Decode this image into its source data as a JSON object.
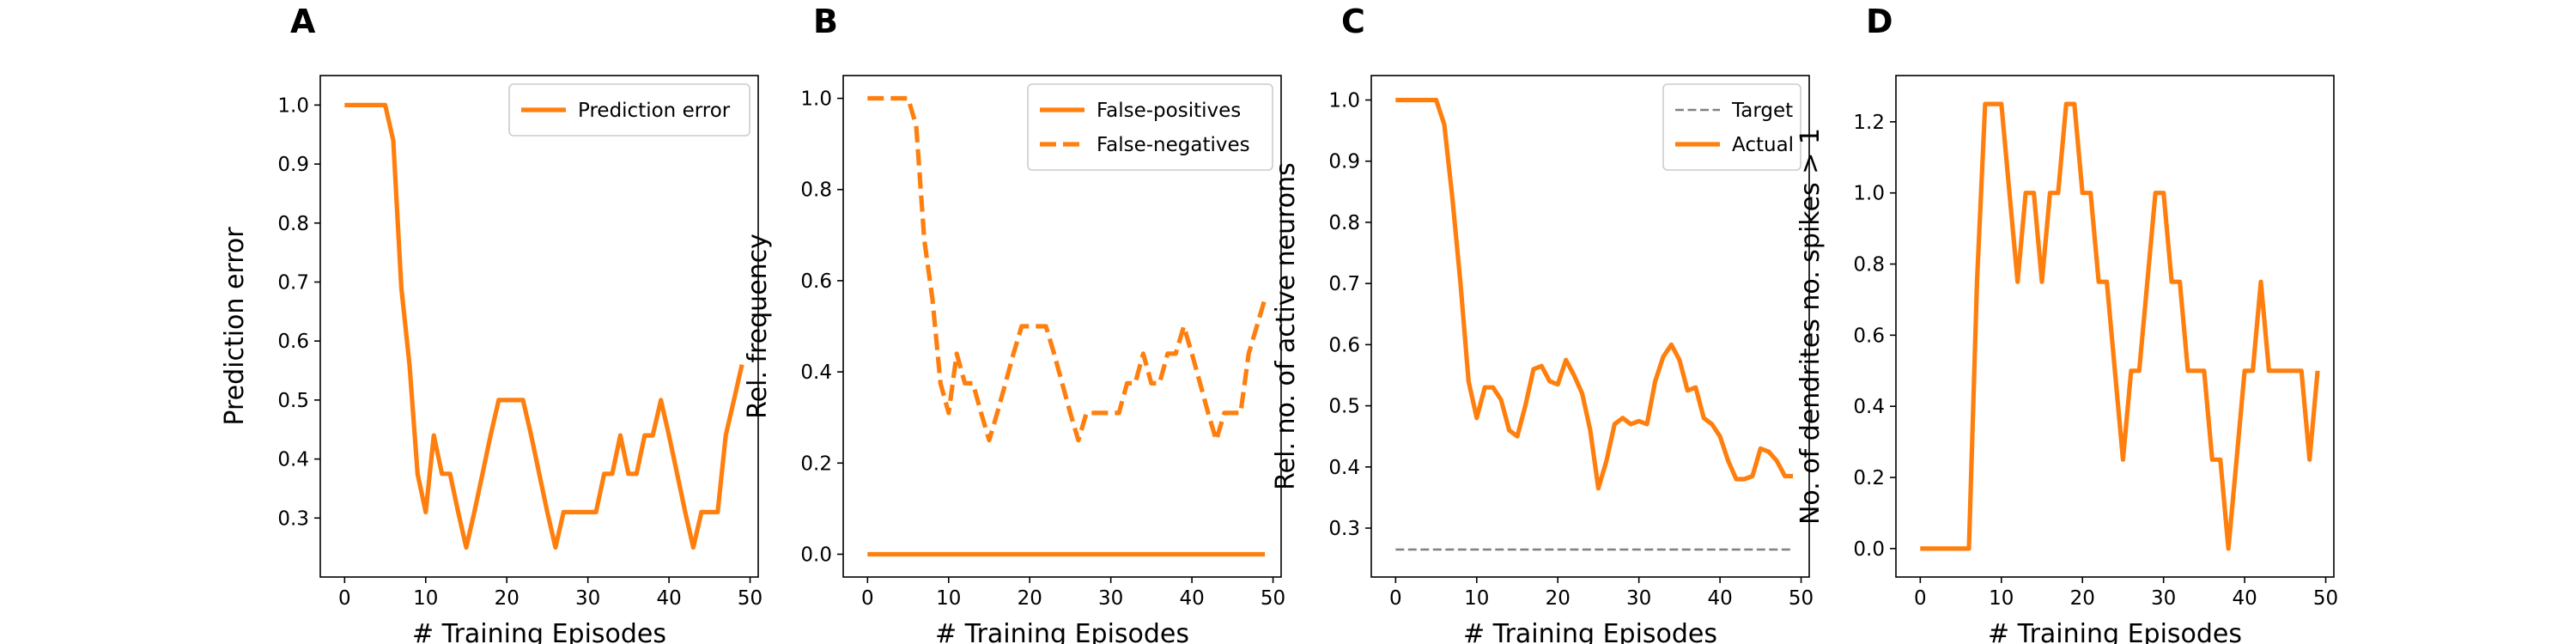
{
  "colors": {
    "orange": "#ff7f0e",
    "target": "#808080"
  },
  "chart_data": [
    {
      "letter": "A",
      "type": "line",
      "xlabel": "# Training Episodes",
      "ylabel": "Prediction error",
      "xlim": [
        -3,
        51
      ],
      "ylim": [
        0.2,
        1.05
      ],
      "xticks": [
        0,
        10,
        20,
        30,
        40,
        50
      ],
      "yticks": [
        0.3,
        0.4,
        0.5,
        0.6,
        0.7,
        0.8,
        0.9,
        1.0
      ],
      "yformat": 1,
      "legend_position": "top-right",
      "series": [
        {
          "name": "Prediction error",
          "style": "solid",
          "color": "#ff7f0e",
          "x": [
            0,
            1,
            2,
            3,
            4,
            5,
            6,
            7,
            8,
            9,
            10,
            11,
            12,
            13,
            14,
            15,
            16,
            17,
            18,
            19,
            20,
            21,
            22,
            23,
            24,
            25,
            26,
            27,
            28,
            29,
            30,
            31,
            32,
            33,
            34,
            35,
            36,
            37,
            38,
            39,
            40,
            41,
            42,
            43,
            44,
            45,
            46,
            47,
            48,
            49
          ],
          "y": [
            1.0,
            1.0,
            1.0,
            1.0,
            1.0,
            1.0,
            0.94,
            0.69,
            0.56,
            0.375,
            0.31,
            0.44,
            0.375,
            0.375,
            0.31,
            0.25,
            0.31,
            0.375,
            0.44,
            0.5,
            0.5,
            0.5,
            0.5,
            0.44,
            0.375,
            0.31,
            0.25,
            0.31,
            0.31,
            0.31,
            0.31,
            0.31,
            0.375,
            0.375,
            0.44,
            0.375,
            0.375,
            0.44,
            0.44,
            0.5,
            0.44,
            0.375,
            0.31,
            0.25,
            0.31,
            0.31,
            0.31,
            0.44,
            0.5,
            0.56
          ]
        }
      ]
    },
    {
      "letter": "B",
      "type": "line",
      "xlabel": "# Training Episodes",
      "ylabel": "Rel. frequency",
      "xlim": [
        -3,
        51
      ],
      "ylim": [
        -0.05,
        1.05
      ],
      "xticks": [
        0,
        10,
        20,
        30,
        40,
        50
      ],
      "yticks": [
        0.0,
        0.2,
        0.4,
        0.6,
        0.8,
        1.0
      ],
      "yformat": 1,
      "legend_position": "top-right",
      "series": [
        {
          "name": "False-positives",
          "style": "solid",
          "color": "#ff7f0e",
          "x": [
            0,
            49
          ],
          "y": [
            0.0,
            0.0
          ]
        },
        {
          "name": "False-negatives",
          "style": "dashed",
          "color": "#ff7f0e",
          "x": [
            0,
            1,
            2,
            3,
            4,
            5,
            6,
            7,
            8,
            9,
            10,
            11,
            12,
            13,
            14,
            15,
            16,
            17,
            18,
            19,
            20,
            21,
            22,
            23,
            24,
            25,
            26,
            27,
            28,
            29,
            30,
            31,
            32,
            33,
            34,
            35,
            36,
            37,
            38,
            39,
            40,
            41,
            42,
            43,
            44,
            45,
            46,
            47,
            48,
            49
          ],
          "y": [
            1.0,
            1.0,
            1.0,
            1.0,
            1.0,
            1.0,
            0.94,
            0.69,
            0.56,
            0.375,
            0.31,
            0.44,
            0.375,
            0.375,
            0.31,
            0.25,
            0.31,
            0.375,
            0.44,
            0.5,
            0.5,
            0.5,
            0.5,
            0.44,
            0.375,
            0.31,
            0.25,
            0.31,
            0.31,
            0.31,
            0.31,
            0.31,
            0.375,
            0.375,
            0.44,
            0.375,
            0.375,
            0.44,
            0.44,
            0.5,
            0.44,
            0.375,
            0.31,
            0.25,
            0.31,
            0.31,
            0.31,
            0.44,
            0.5,
            0.56
          ]
        }
      ]
    },
    {
      "letter": "C",
      "type": "line",
      "xlabel": "# Training Episodes",
      "ylabel": "Rel. no. of active neurons",
      "xlim": [
        -3,
        51
      ],
      "ylim": [
        0.22,
        1.04
      ],
      "xticks": [
        0,
        10,
        20,
        30,
        40,
        50
      ],
      "yticks": [
        0.3,
        0.4,
        0.5,
        0.6,
        0.7,
        0.8,
        0.9,
        1.0
      ],
      "yformat": 1,
      "legend_position": "top-right",
      "series": [
        {
          "name": "Target",
          "style": "target-dashed",
          "color": "#808080",
          "x": [
            0,
            49
          ],
          "y": [
            0.265,
            0.265
          ]
        },
        {
          "name": "Actual",
          "style": "solid",
          "color": "#ff7f0e",
          "x": [
            0,
            1,
            2,
            3,
            4,
            5,
            6,
            7,
            8,
            9,
            10,
            11,
            12,
            13,
            14,
            15,
            16,
            17,
            18,
            19,
            20,
            21,
            22,
            23,
            24,
            25,
            26,
            27,
            28,
            29,
            30,
            31,
            32,
            33,
            34,
            35,
            36,
            37,
            38,
            39,
            40,
            41,
            42,
            43,
            44,
            45,
            46,
            47,
            48,
            49
          ],
          "y": [
            1.0,
            1.0,
            1.0,
            1.0,
            1.0,
            1.0,
            0.96,
            0.84,
            0.7,
            0.54,
            0.48,
            0.53,
            0.53,
            0.51,
            0.46,
            0.45,
            0.5,
            0.56,
            0.565,
            0.54,
            0.535,
            0.575,
            0.55,
            0.52,
            0.46,
            0.365,
            0.41,
            0.47,
            0.48,
            0.47,
            0.475,
            0.47,
            0.54,
            0.58,
            0.6,
            0.575,
            0.525,
            0.53,
            0.48,
            0.47,
            0.45,
            0.41,
            0.38,
            0.38,
            0.385,
            0.43,
            0.425,
            0.41,
            0.385,
            0.385
          ]
        }
      ]
    },
    {
      "letter": "D",
      "type": "line",
      "xlabel": "# Training Episodes",
      "ylabel": "No. of dendrites no. spikes > 1",
      "xlim": [
        -3,
        51
      ],
      "ylim": [
        -0.08,
        1.33
      ],
      "xticks": [
        0,
        10,
        20,
        30,
        40,
        50
      ],
      "yticks": [
        0.0,
        0.2,
        0.4,
        0.6,
        0.8,
        1.0,
        1.2
      ],
      "yformat": 1,
      "series": [
        {
          "name": "No. of dendrites no. spikes > 1",
          "style": "solid",
          "color": "#ff7f0e",
          "x": [
            0,
            1,
            2,
            3,
            4,
            5,
            6,
            7,
            8,
            9,
            10,
            11,
            12,
            13,
            14,
            15,
            16,
            17,
            18,
            19,
            20,
            21,
            22,
            23,
            24,
            25,
            26,
            27,
            28,
            29,
            30,
            31,
            32,
            33,
            34,
            35,
            36,
            37,
            38,
            39,
            40,
            41,
            42,
            43,
            44,
            45,
            46,
            47,
            48,
            49
          ],
          "y": [
            0.0,
            0.0,
            0.0,
            0.0,
            0.0,
            0.0,
            0.0,
            0.75,
            1.25,
            1.25,
            1.25,
            1.0,
            0.75,
            1.0,
            1.0,
            0.75,
            1.0,
            1.0,
            1.25,
            1.25,
            1.0,
            1.0,
            0.75,
            0.75,
            0.5,
            0.25,
            0.5,
            0.5,
            0.75,
            1.0,
            1.0,
            0.75,
            0.75,
            0.5,
            0.5,
            0.5,
            0.25,
            0.25,
            0.0,
            0.25,
            0.5,
            0.5,
            0.75,
            0.5,
            0.5,
            0.5,
            0.5,
            0.5,
            0.25,
            0.5
          ]
        }
      ]
    }
  ]
}
